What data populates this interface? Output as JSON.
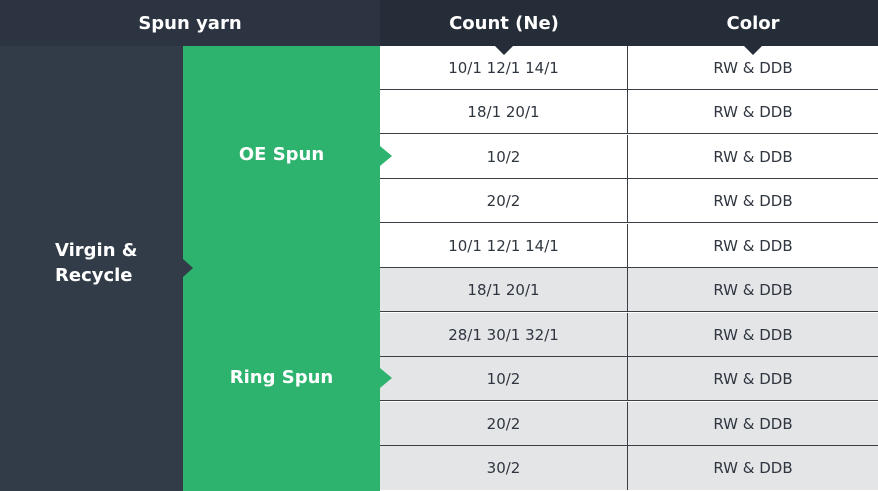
{
  "header": {
    "spun_yarn": "Spun yarn",
    "count": "Count (Ne)",
    "color": "Color"
  },
  "category": "Virgin &\nRecycle",
  "processes": {
    "oe": "OE Spun",
    "ring": "Ring Spun"
  },
  "rows": [
    {
      "count": "10/1 12/1 14/1",
      "color": "RW & DDB"
    },
    {
      "count": "18/1 20/1",
      "color": "RW & DDB"
    },
    {
      "count": "10/2",
      "color": "RW & DDB"
    },
    {
      "count": "20/2",
      "color": "RW & DDB"
    },
    {
      "count": "10/1 12/1 14/1",
      "color": "RW & DDB"
    },
    {
      "count": "18/1 20/1",
      "color": "RW & DDB"
    },
    {
      "count": "28/1 30/1 32/1",
      "color": "RW & DDB"
    },
    {
      "count": "10/2",
      "color": "RW & DDB"
    },
    {
      "count": "20/2",
      "color": "RW & DDB"
    },
    {
      "count": "30/2",
      "color": "RW & DDB"
    }
  ],
  "colors": {
    "dark": "#323c48",
    "header": "#252d38",
    "green": "#2eb36e",
    "alt_row": "#e4e5e7"
  }
}
